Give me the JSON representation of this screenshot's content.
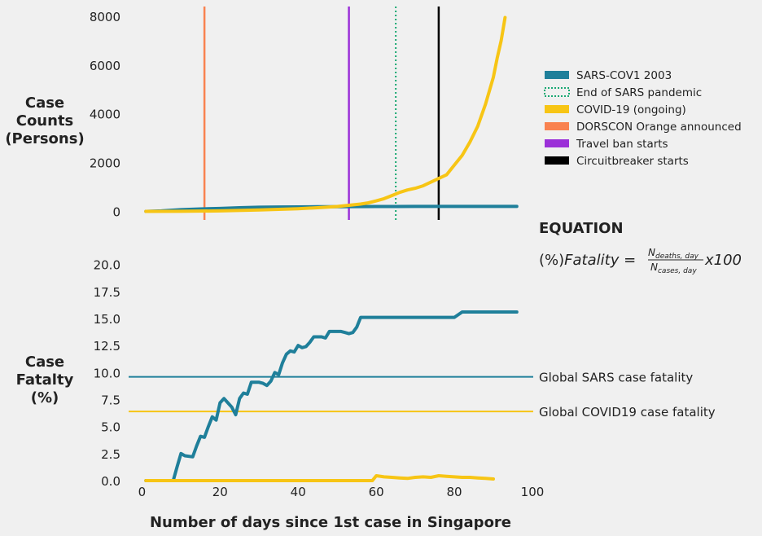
{
  "chart_data": [
    {
      "type": "line",
      "ylabel": [
        "Case",
        "Counts",
        "(Persons)"
      ],
      "xlim": [
        -3,
        100
      ],
      "ylim": [
        -350,
        8400
      ],
      "yticks": [
        0,
        2000,
        4000,
        6000,
        8000
      ],
      "ytick_labels": [
        "0",
        "2000",
        "4000",
        "6000",
        "8000"
      ],
      "grid": false,
      "legend_position": "right",
      "series": [
        {
          "name": "SARS-COV1 2003",
          "color": "#1f7f9a",
          "x": [
            1,
            5,
            10,
            15,
            20,
            25,
            30,
            35,
            40,
            45,
            50,
            55,
            60,
            65,
            70,
            75,
            80,
            85,
            90,
            96
          ],
          "y": [
            0,
            20,
            70,
            100,
            120,
            150,
            170,
            180,
            185,
            190,
            195,
            198,
            200,
            202,
            203,
            204,
            205,
            206,
            206,
            206
          ]
        },
        {
          "name": "COVID-19 (ongoing)",
          "color": "#f7c515",
          "x": [
            1,
            10,
            20,
            30,
            40,
            45,
            50,
            53,
            56,
            58,
            60,
            62,
            64,
            66,
            68,
            70,
            72,
            74,
            76,
            78,
            80,
            82,
            84,
            86,
            88,
            90,
            91,
            92,
            93
          ],
          "y": [
            0,
            5,
            20,
            60,
            110,
            150,
            200,
            250,
            300,
            350,
            430,
            520,
            650,
            780,
            880,
            950,
            1050,
            1200,
            1350,
            1500,
            1900,
            2300,
            2850,
            3500,
            4400,
            5500,
            6300,
            7000,
            7950
          ]
        }
      ],
      "vlines": [
        {
          "name": "DORSCON Orange announced",
          "x": 16,
          "color": "#f98250",
          "style": "solid"
        },
        {
          "name": "Travel ban starts",
          "x": 53,
          "color": "#9b30d8",
          "style": "solid"
        },
        {
          "name": "End of SARS pandemic",
          "x": 65,
          "color": "#1aa872",
          "style": "dotted"
        },
        {
          "name": "Circuitbreaker starts",
          "x": 76,
          "color": "#000000",
          "style": "solid"
        }
      ]
    },
    {
      "type": "line",
      "ylabel": [
        "Case",
        "Fatalty",
        "(%)"
      ],
      "xlabel": "Number of days since 1st case in Singapore",
      "xlim": [
        -3,
        100
      ],
      "ylim": [
        0,
        20.5
      ],
      "xticks": [
        0,
        20,
        40,
        60,
        80,
        100
      ],
      "xtick_labels": [
        "0",
        "20",
        "40",
        "60",
        "80",
        "100"
      ],
      "yticks": [
        0,
        2.5,
        5,
        7.5,
        10,
        12.5,
        15,
        17.5,
        20
      ],
      "ytick_labels": [
        "0.0",
        "2.5",
        "5.0",
        "7.5",
        "10.0",
        "12.5",
        "15.0",
        "17.5",
        "20.0"
      ],
      "grid": false,
      "series": [
        {
          "name": "SARS-COV1 2003",
          "color": "#1f7f9a",
          "x": [
            1,
            8,
            9,
            10,
            11,
            13,
            14,
            15,
            16,
            17,
            18,
            19,
            20,
            21,
            22,
            23,
            24,
            25,
            26,
            27,
            28,
            29,
            30,
            31,
            32,
            33,
            34,
            35,
            36,
            37,
            38,
            39,
            40,
            41,
            42,
            43,
            44,
            45,
            46,
            47,
            48,
            49,
            50,
            51,
            52,
            53,
            54,
            55,
            56,
            57,
            58,
            60,
            65,
            70,
            75,
            80,
            82,
            85,
            90,
            96
          ],
          "y": [
            0,
            0,
            1.3,
            2.5,
            2.3,
            2.2,
            3.2,
            4.1,
            4.0,
            5.0,
            5.9,
            5.6,
            7.2,
            7.6,
            7.2,
            6.8,
            6.1,
            7.6,
            8.1,
            8.0,
            9.1,
            9.1,
            9.1,
            9.0,
            8.8,
            9.2,
            10.0,
            9.8,
            10.9,
            11.7,
            12.0,
            11.9,
            12.5,
            12.3,
            12.4,
            12.8,
            13.3,
            13.3,
            13.3,
            13.2,
            13.8,
            13.8,
            13.8,
            13.8,
            13.7,
            13.6,
            13.7,
            14.2,
            15.1,
            15.1,
            15.1,
            15.1,
            15.1,
            15.1,
            15.1,
            15.1,
            15.6,
            15.6,
            15.6,
            15.6
          ]
        },
        {
          "name": "COVID-19 (ongoing)",
          "color": "#f7c515",
          "x": [
            1,
            10,
            20,
            30,
            40,
            50,
            59,
            60,
            62,
            64,
            66,
            68,
            70,
            72,
            74,
            76,
            78,
            80,
            82,
            84,
            86,
            88,
            90
          ],
          "y": [
            0,
            0,
            0,
            0,
            0,
            0,
            0,
            0.45,
            0.35,
            0.3,
            0.25,
            0.2,
            0.3,
            0.35,
            0.3,
            0.45,
            0.4,
            0.35,
            0.3,
            0.3,
            0.25,
            0.2,
            0.15
          ]
        }
      ],
      "hlines": [
        {
          "y": 9.6,
          "color": "#1f7f9a",
          "label": "Global SARS case fatality"
        },
        {
          "y": 6.4,
          "color": "#f7c515",
          "label": "Global COVID19 case fatality"
        }
      ],
      "annotations": {
        "equation_title": "EQUATION",
        "equation_lhs": "(%)",
        "equation_fatality": "Fatality",
        "equation_eq": " = ",
        "equation_num": "N",
        "equation_num_sub": "deaths, day",
        "equation_den": "N",
        "equation_den_sub": "cases, day",
        "equation_mult": "x100"
      }
    }
  ],
  "legend": [
    {
      "label": "SARS-COV1 2003",
      "color": "#1f7f9a",
      "style": "filled"
    },
    {
      "label": "End of SARS pandemic",
      "color": "#1aa872",
      "style": "dotted"
    },
    {
      "label": "COVID-19 (ongoing)",
      "color": "#f7c515",
      "style": "filled"
    },
    {
      "label": "DORSCON Orange announced",
      "color": "#f98250",
      "style": "filled"
    },
    {
      "label": "Travel ban starts",
      "color": "#9b30d8",
      "style": "filled"
    },
    {
      "label": "Circuitbreaker starts",
      "color": "#000000",
      "style": "filled"
    }
  ]
}
